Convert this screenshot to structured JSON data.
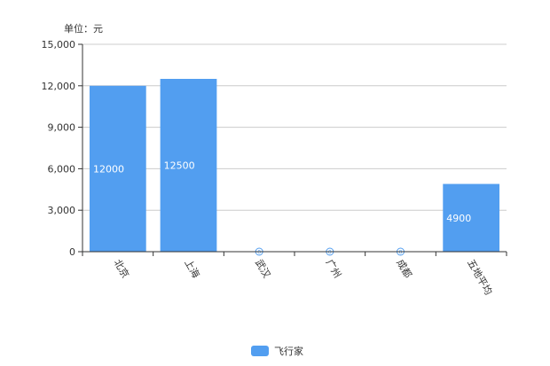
{
  "chart_data": {
    "type": "bar",
    "unit_label": "单位：元",
    "categories": [
      "北京",
      "上海",
      "武汉",
      "广州",
      "成都",
      "五地平均"
    ],
    "series": [
      {
        "name": "飞行家",
        "values": [
          12000,
          12500,
          0,
          0,
          0,
          4900
        ]
      }
    ],
    "data_labels": [
      "12000",
      "12500",
      "0",
      "0",
      "0",
      "4900"
    ],
    "y_ticks": [
      "0",
      "3,000",
      "6,000",
      "9,000",
      "12,000",
      "15,000"
    ],
    "ylim": [
      0,
      15000
    ],
    "grid": true,
    "legend_position": "bottom-center",
    "colors": {
      "bar": "#529ef0",
      "grid": "#cccccc",
      "axis": "#333333"
    }
  }
}
